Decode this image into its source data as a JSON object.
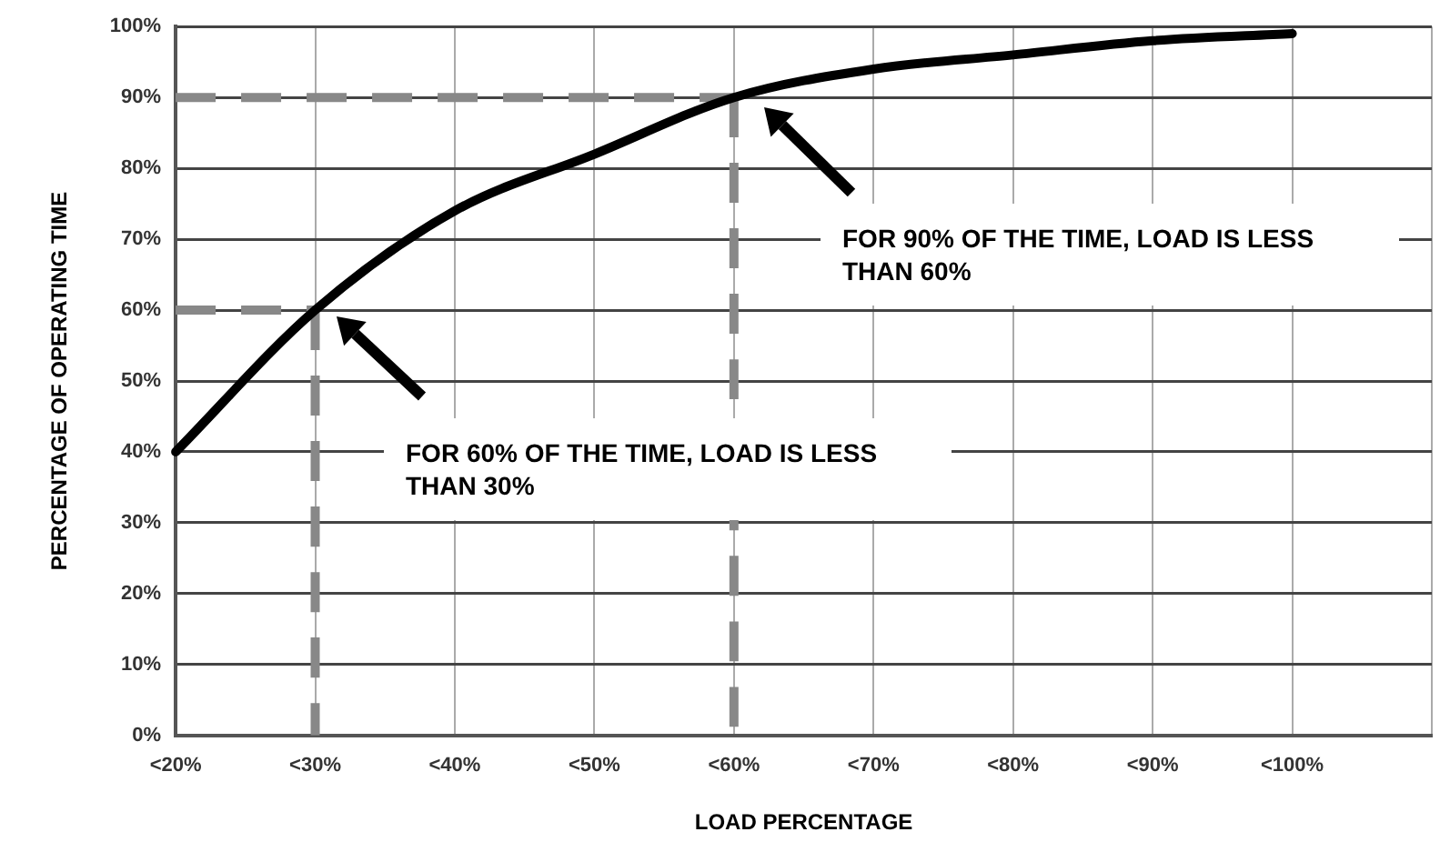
{
  "chart_data": {
    "type": "line",
    "xlabel": "LOAD PERCENTAGE",
    "ylabel": "PERCENTAGE OF OPERATING TIME",
    "categories": [
      "<20%",
      "<30%",
      "<40%",
      "<50%",
      "<60%",
      "<70%",
      "<80%",
      "<90%",
      "<100%",
      null
    ],
    "series": [
      {
        "color": "#000000",
        "values": [
          40,
          60,
          74,
          82,
          90,
          94,
          96,
          98,
          99,
          null
        ],
        "line_style": "solid"
      },
      {
        "color": "#888888",
        "values": [
          90,
          90,
          90,
          90,
          90,
          null,
          null,
          null,
          null,
          null
        ],
        "line_style": "dashed"
      },
      {
        "color": "#888888",
        "x": [
          "<60%",
          "<60%"
        ],
        "values": [
          90,
          0
        ],
        "line_style": "dashed"
      },
      {
        "color": "#888888",
        "values": [
          60,
          60,
          null,
          null,
          null,
          null,
          null,
          null,
          null,
          null
        ],
        "line_style": "dashed"
      },
      {
        "color": "#888888",
        "x": [
          "<30%",
          "<30%"
        ],
        "values": [
          60,
          0
        ],
        "line_style": "dashed"
      }
    ],
    "ylim": [
      0,
      100
    ],
    "yticks": [
      {
        "value": 0,
        "label": "0%"
      },
      {
        "value": 10,
        "label": "10%"
      },
      {
        "value": 20,
        "label": "20%"
      },
      {
        "value": 30,
        "label": "30%"
      },
      {
        "value": 40,
        "label": "40%"
      },
      {
        "value": 50,
        "label": "50%"
      },
      {
        "value": 60,
        "label": "60%"
      },
      {
        "value": 70,
        "label": "70%"
      },
      {
        "value": 80,
        "label": "80%"
      },
      {
        "value": 90,
        "label": "90%"
      },
      {
        "value": 100,
        "label": "100%"
      }
    ],
    "grid": true,
    "legend": false,
    "marker": "none",
    "annotations": [
      "FOR 90% OF THE TIME, LOAD IS LESS THAN 60%",
      "FOR 60% OF THE TIME, LOAD IS LESS THAN 30%"
    ]
  }
}
